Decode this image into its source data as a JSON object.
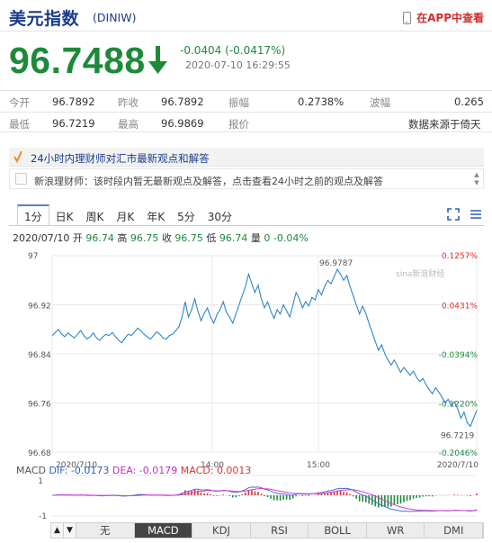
{
  "header": {
    "title": "美元指数",
    "code": "(DINIW)",
    "app_link": "在APP中查看"
  },
  "quote": {
    "price": "96.7488",
    "change": "-0.0404 (-0.0417%)",
    "datetime": "2020-07-10 16:29:55",
    "direction": "down",
    "color": "#1d8a3a"
  },
  "stats": {
    "row1": [
      {
        "label": "今开",
        "value": "96.7892"
      },
      {
        "label": "昨收",
        "value": "96.7892"
      },
      {
        "label": "振幅",
        "value": "0.2738%"
      },
      {
        "label": "波幅",
        "value": "0.265"
      }
    ],
    "row2": [
      {
        "label": "最低",
        "value": "96.7219"
      },
      {
        "label": "最高",
        "value": "96.9869"
      },
      {
        "label": "报价",
        "value": ""
      },
      {
        "label": "",
        "value": "数据来源于倚天"
      }
    ]
  },
  "news": {
    "heading": "24小时内理财师对汇市最新观点和解答",
    "message": "新浪理财师：该时段内暂无最新观点及解答，点击查看24小时之前的观点及解答"
  },
  "tabs": [
    "1分",
    "日K",
    "周K",
    "月K",
    "年K",
    "5分",
    "30分"
  ],
  "active_tab": 0,
  "ohlc": {
    "date": "2020/07/10",
    "open_label": "开",
    "open": "96.74",
    "high_label": "高",
    "high": "96.75",
    "close_label": "收",
    "close": "96.75",
    "low_label": "低",
    "low": "96.74",
    "vol_label": "量",
    "vol": "0",
    "pct": "-0.04%"
  },
  "macd": {
    "label": "MACD",
    "dif": "DIF: -0.0173",
    "dea": "DEA: -0.0179",
    "macd": "MACD: 0.0013"
  },
  "indicators": [
    "无",
    "MACD",
    "KDJ",
    "RSI",
    "BOLL",
    "WR",
    "DMI"
  ],
  "active_indicator": 1,
  "chart_data": {
    "type": "line",
    "y_ticks": [
      "97",
      "96.92",
      "96.84",
      "96.76",
      "96.68"
    ],
    "pct_ticks": [
      "0.1257%",
      "0.0431%",
      "-0.0394%",
      "-0.1220%",
      "-0.2046%"
    ],
    "x_ticks": [
      "2020/7/10",
      "14:00",
      "15:00",
      "2020/7/10"
    ],
    "ylim": [
      96.68,
      97.0
    ],
    "high_label": "96.9787",
    "low_label": "96.7219",
    "watermark": "sina新浪财经",
    "macd_ticks": [
      "1",
      "-1"
    ],
    "series": [
      {
        "values": [
          96.87,
          96.875,
          96.88,
          96.872,
          96.868,
          96.874,
          96.87,
          96.866,
          96.872,
          96.878,
          96.87,
          96.864,
          96.868,
          96.874,
          96.866,
          96.862,
          96.868,
          96.872,
          96.87,
          96.875,
          96.868,
          96.862,
          96.858,
          96.866,
          96.872,
          96.87,
          96.876,
          96.882,
          96.878,
          96.872,
          96.868,
          96.864,
          96.87,
          96.876,
          96.872,
          96.866,
          96.864,
          96.87,
          96.872,
          96.878,
          96.884,
          96.9,
          96.925,
          96.9,
          96.912,
          96.93,
          96.91,
          96.894,
          96.906,
          96.915,
          96.9,
          96.89,
          96.904,
          96.912,
          96.925,
          96.908,
          96.9,
          96.89,
          96.905,
          96.92,
          96.935,
          96.95,
          96.97,
          96.955,
          96.94,
          96.952,
          96.93,
          96.915,
          96.925,
          96.91,
          96.898,
          96.912,
          96.905,
          96.92,
          96.91,
          96.9,
          96.92,
          96.94,
          96.93,
          96.915,
          96.925,
          96.918,
          96.932,
          96.928,
          96.945,
          96.936,
          96.95,
          96.96,
          96.954,
          96.966,
          96.978,
          96.97,
          96.96,
          96.968,
          96.95,
          96.935,
          96.92,
          96.905,
          96.918,
          96.906,
          96.89,
          96.875,
          96.86,
          96.846,
          96.855,
          96.84,
          96.83,
          96.822,
          96.83,
          96.82,
          96.81,
          96.818,
          96.812,
          96.805,
          96.812,
          96.802,
          96.795,
          96.8,
          96.79,
          96.782,
          96.775,
          96.785,
          96.778,
          96.77,
          96.76,
          96.766,
          96.755,
          96.762,
          96.75,
          96.735,
          96.745,
          96.728,
          96.722,
          96.735,
          96.748
        ]
      }
    ]
  }
}
